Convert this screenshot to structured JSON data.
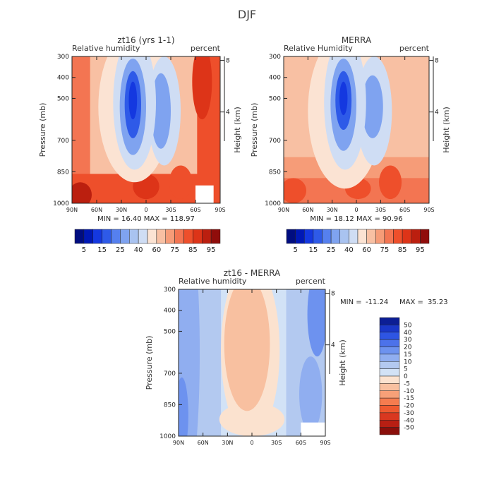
{
  "figure_title": "DJF",
  "legend_pos": {
    "title": "zt16 - MERRA",
    "min_label": "MIN =",
    "min_value": "-11.24",
    "max_label": "MAX =",
    "max_value": "35.23"
  },
  "chart_data": [
    {
      "type": "heatmap",
      "id": "p1",
      "title": "zt16 (yrs 1-1)",
      "left_label": "Relative humidity",
      "right_label": "percent",
      "ylabel": "Pressure (mb)",
      "y2label": "Height (km)",
      "xlabel": "",
      "x": [
        "90N",
        "60N",
        "30N",
        "0",
        "30S",
        "60S",
        "90S"
      ],
      "x_values": [
        90,
        60,
        30,
        0,
        -30,
        -60,
        -90
      ],
      "xlim": [
        90,
        -90
      ],
      "y": [
        "300",
        "400",
        "500",
        "700",
        "850",
        "1000"
      ],
      "y_values": [
        300,
        400,
        500,
        700,
        850,
        1000
      ],
      "ylim": [
        300,
        1000
      ],
      "y2": [
        "8",
        "4"
      ],
      "y2_values": [
        8,
        4
      ],
      "min_label": "MIN =",
      "min": "16.40",
      "max_label": "MAX =",
      "max": "118.97",
      "colorbar": [
        "5",
        "15",
        "25",
        "40",
        "60",
        "75",
        "85",
        "95"
      ],
      "colors": [
        "#000d80",
        "#0018b5",
        "#1438e0",
        "#2e5ae8",
        "#5580ef",
        "#7fa3f0",
        "#a9c3f0",
        "#cfddf4",
        "#fbe3d3",
        "#f8c0a3",
        "#f69c78",
        "#f37552",
        "#ee4f2b",
        "#dd3418",
        "#bb1f0f",
        "#900d0b"
      ]
    },
    {
      "type": "heatmap",
      "id": "p2",
      "title": "MERRA",
      "left_label": "Relative Humidity",
      "right_label": "percent",
      "ylabel": "Pressure (mb)",
      "y2label": "Height (km)",
      "xlabel": "",
      "x": [
        "90N",
        "60N",
        "30N",
        "0",
        "30S",
        "60S",
        "90S"
      ],
      "x_values": [
        90,
        60,
        30,
        0,
        -30,
        -60,
        -90
      ],
      "xlim": [
        90,
        -90
      ],
      "y": [
        "300",
        "400",
        "500",
        "700",
        "850",
        "1000"
      ],
      "y_values": [
        300,
        400,
        500,
        700,
        850,
        1000
      ],
      "ylim": [
        300,
        1000
      ],
      "y2": [
        "8",
        "4"
      ],
      "y2_values": [
        8,
        4
      ],
      "min_label": "MIN =",
      "min": "18.12",
      "max_label": "MAX =",
      "max": "90.96",
      "colorbar": [
        "5",
        "15",
        "25",
        "40",
        "60",
        "75",
        "85",
        "95"
      ],
      "colors": [
        "#000d80",
        "#0018b5",
        "#1438e0",
        "#2e5ae8",
        "#5580ef",
        "#7fa3f0",
        "#a9c3f0",
        "#cfddf4",
        "#fbe3d3",
        "#f8c0a3",
        "#f69c78",
        "#f37552",
        "#ee4f2b",
        "#dd3418",
        "#bb1f0f",
        "#900d0b"
      ]
    },
    {
      "type": "heatmap",
      "id": "p3",
      "title": "zt16 - MERRA",
      "left_label": "Relative humidity",
      "right_label": "percent",
      "ylabel": "Pressure (mb)",
      "y2label": "Height (km)",
      "xlabel": "",
      "x": [
        "90N",
        "60N",
        "30N",
        "0",
        "30S",
        "60S",
        "90S"
      ],
      "x_values": [
        90,
        60,
        30,
        0,
        -30,
        -60,
        -90
      ],
      "xlim": [
        90,
        -90
      ],
      "y": [
        "300",
        "400",
        "500",
        "700",
        "850",
        "1000"
      ],
      "y_values": [
        300,
        400,
        500,
        700,
        850,
        1000
      ],
      "ylim": [
        300,
        1000
      ],
      "y2": [
        "8",
        "4"
      ],
      "y2_values": [
        8,
        4
      ],
      "min_label": "MIN =",
      "min": "-11.24",
      "max_label": "MAX =",
      "max": "35.23",
      "colorbar": [
        "50",
        "40",
        "30",
        "20",
        "15",
        "10",
        "5",
        "0",
        "-5",
        "-10",
        "-15",
        "-20",
        "-30",
        "-40",
        "-50"
      ],
      "colors": [
        "#8a0f0b",
        "#b81f13",
        "#d93820",
        "#ee5a30",
        "#f57c4f",
        "#f7a078",
        "#f8c0a0",
        "#fbe2cf",
        "#d2e2f6",
        "#b3c9f0",
        "#90aef0",
        "#6d92ef",
        "#4c72ea",
        "#2e55e3",
        "#1a37c8",
        "#0c1e95"
      ]
    }
  ]
}
